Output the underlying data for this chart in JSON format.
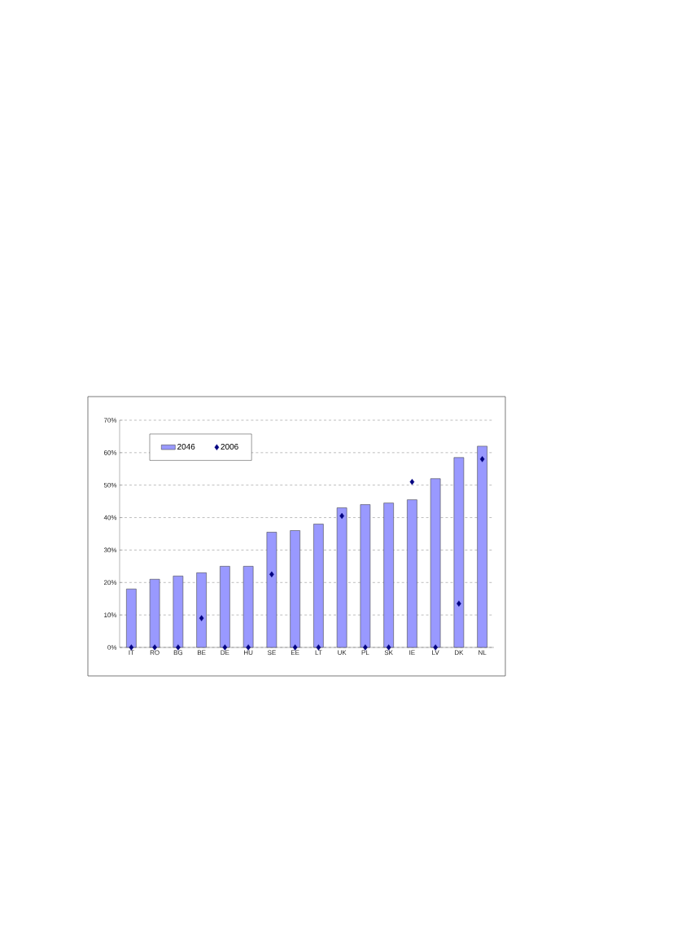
{
  "chart_data": {
    "type": "bar",
    "categories": [
      "IT",
      "RO",
      "BG",
      "BE",
      "DE",
      "HU",
      "SE",
      "EE",
      "LT",
      "UK",
      "PL",
      "SK",
      "IE",
      "LV",
      "DK",
      "NL"
    ],
    "series": [
      {
        "name": "2046",
        "color": "#9999ff",
        "values": [
          18,
          21,
          22,
          23,
          25,
          25,
          35.5,
          36,
          38,
          43,
          44,
          44.5,
          45.5,
          52,
          58.5,
          62
        ]
      },
      {
        "name": "2006",
        "type": "scatter",
        "color": "#000080",
        "values": [
          0,
          0,
          0,
          9,
          0,
          0,
          22.5,
          0,
          0,
          40.5,
          0,
          0,
          51,
          0,
          13.5,
          58
        ]
      }
    ],
    "ylim": [
      0,
      70
    ],
    "yticks": [
      {
        "value": 0,
        "label": "0%"
      },
      {
        "value": 10,
        "label": "10%"
      },
      {
        "value": 20,
        "label": "20%"
      },
      {
        "value": 30,
        "label": "30%"
      },
      {
        "value": 40,
        "label": "40%"
      },
      {
        "value": 50,
        "label": "50%"
      },
      {
        "value": 60,
        "label": "60%"
      },
      {
        "value": 70,
        "label": "70%"
      }
    ],
    "grid": "y",
    "legend": "top left",
    "marker": "diamond"
  }
}
